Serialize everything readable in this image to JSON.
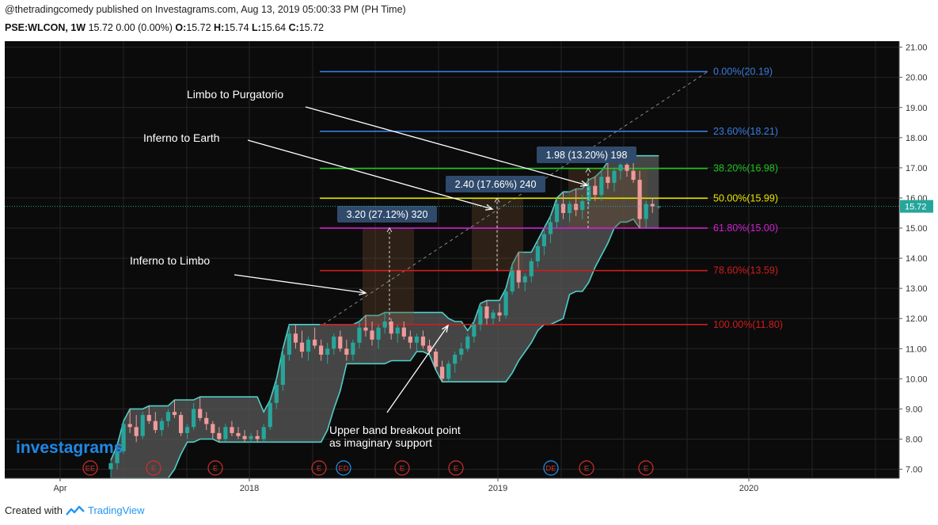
{
  "header": {
    "published_line": "@thetradingcomedy published on Investagrams.com, Aug 13, 2019 05:00:33 PM (PH Time)",
    "symbol": "PSE:WLCON, 1W",
    "quote": "15.72 0.00 (0.00%)",
    "o_label": "O:",
    "o": "15.72",
    "h_label": "H:",
    "h": "15.74",
    "l_label": "L:",
    "l": "15.64",
    "c_label": "C:",
    "c": "15.72"
  },
  "footer": {
    "created_with": "Created with",
    "brand": "TradingView"
  },
  "watermark": "investagrams",
  "colors": {
    "background": "#0b0b0b",
    "up": "#26a69a",
    "down": "#ef9a9a",
    "band": "#4dd0c8"
  },
  "chart_data": {
    "type": "candlestick",
    "symbol": "PSE:WLCON",
    "interval": "1W",
    "last_price": "15.72",
    "ylim": [
      6.7,
      21.2
    ],
    "y_ticks": [
      "7.00",
      "8.00",
      "9.00",
      "10.00",
      "11.00",
      "12.00",
      "13.00",
      "14.00",
      "15.00",
      "16.00",
      "17.00",
      "18.00",
      "19.00",
      "20.00",
      "21.00"
    ],
    "x_ticks": [
      "Apr",
      "2018",
      "2019",
      "2020"
    ],
    "fib_levels": [
      {
        "label": "0.00%(20.19)",
        "value": 20.19,
        "color": "#3b7de0"
      },
      {
        "label": "23.60%(18.21)",
        "value": 18.21,
        "color": "#3b7de0"
      },
      {
        "label": "38.20%(16.98)",
        "value": 16.98,
        "color": "#1ec41e"
      },
      {
        "label": "50.00%(15.99)",
        "value": 15.99,
        "color": "#e6e600"
      },
      {
        "label": "61.80%(15.00)",
        "value": 15.0,
        "color": "#d21fd2"
      },
      {
        "label": "78.60%(13.59)",
        "value": 13.59,
        "color": "#d01c1c"
      },
      {
        "label": "100.00%(11.80)",
        "value": 11.8,
        "color": "#d01c1c"
      }
    ],
    "measurements": [
      {
        "label": "3.20 (27.12%) 320",
        "from": 11.8,
        "to": 15.0
      },
      {
        "label": "2.40 (17.66%) 240",
        "from": 13.59,
        "to": 15.99
      },
      {
        "label": "1.98 (13.20%) 198",
        "from": 15.0,
        "to": 16.98
      }
    ],
    "annotations": [
      {
        "text": "Limbo to Purgatorio"
      },
      {
        "text": "Inferno to Earth"
      },
      {
        "text": "Inferno to Limbo"
      },
      {
        "text": "Upper band breakout point\nas imaginary support"
      }
    ],
    "event_markers": [
      "EE",
      "E",
      "E",
      "E",
      "ED",
      "E",
      "E",
      "DE",
      "E",
      "E"
    ],
    "candles": [
      {
        "o": 7.0,
        "h": 7.3,
        "l": 6.7,
        "c": 7.2
      },
      {
        "o": 7.2,
        "h": 7.8,
        "l": 7.0,
        "c": 7.6
      },
      {
        "o": 7.6,
        "h": 8.6,
        "l": 7.5,
        "c": 8.5
      },
      {
        "o": 8.5,
        "h": 9.0,
        "l": 8.2,
        "c": 8.4
      },
      {
        "o": 8.4,
        "h": 8.8,
        "l": 7.9,
        "c": 8.1
      },
      {
        "o": 8.1,
        "h": 8.9,
        "l": 8.0,
        "c": 8.8
      },
      {
        "o": 8.8,
        "h": 9.1,
        "l": 8.5,
        "c": 8.6
      },
      {
        "o": 8.6,
        "h": 8.9,
        "l": 8.2,
        "c": 8.3
      },
      {
        "o": 8.3,
        "h": 8.7,
        "l": 8.1,
        "c": 8.6
      },
      {
        "o": 8.6,
        "h": 9.0,
        "l": 8.4,
        "c": 8.9
      },
      {
        "o": 8.9,
        "h": 9.3,
        "l": 8.7,
        "c": 8.8
      },
      {
        "o": 8.8,
        "h": 8.9,
        "l": 8.1,
        "c": 8.2
      },
      {
        "o": 8.2,
        "h": 8.5,
        "l": 8.0,
        "c": 8.4
      },
      {
        "o": 8.4,
        "h": 9.2,
        "l": 8.3,
        "c": 9.0
      },
      {
        "o": 9.0,
        "h": 9.4,
        "l": 8.6,
        "c": 8.7
      },
      {
        "o": 8.7,
        "h": 8.9,
        "l": 8.3,
        "c": 8.5
      },
      {
        "o": 8.5,
        "h": 8.6,
        "l": 8.0,
        "c": 8.2
      },
      {
        "o": 8.2,
        "h": 8.4,
        "l": 7.9,
        "c": 8.0
      },
      {
        "o": 8.0,
        "h": 8.5,
        "l": 7.9,
        "c": 8.4
      },
      {
        "o": 8.4,
        "h": 8.6,
        "l": 8.1,
        "c": 8.2
      },
      {
        "o": 8.2,
        "h": 8.4,
        "l": 8.0,
        "c": 8.1
      },
      {
        "o": 8.1,
        "h": 8.3,
        "l": 7.9,
        "c": 8.0
      },
      {
        "o": 8.0,
        "h": 8.2,
        "l": 7.9,
        "c": 8.1
      },
      {
        "o": 8.1,
        "h": 8.3,
        "l": 7.9,
        "c": 8.0
      },
      {
        "o": 8.0,
        "h": 8.5,
        "l": 7.9,
        "c": 8.4
      },
      {
        "o": 8.4,
        "h": 9.3,
        "l": 8.3,
        "c": 9.2
      },
      {
        "o": 9.2,
        "h": 10.0,
        "l": 9.0,
        "c": 9.8
      },
      {
        "o": 9.8,
        "h": 11.0,
        "l": 9.6,
        "c": 10.8
      },
      {
        "o": 10.8,
        "h": 11.8,
        "l": 10.6,
        "c": 11.5
      },
      {
        "o": 11.5,
        "h": 11.8,
        "l": 11.0,
        "c": 11.2
      },
      {
        "o": 11.2,
        "h": 11.6,
        "l": 10.7,
        "c": 10.9
      },
      {
        "o": 10.9,
        "h": 11.4,
        "l": 10.6,
        "c": 11.3
      },
      {
        "o": 11.3,
        "h": 11.7,
        "l": 11.0,
        "c": 11.1
      },
      {
        "o": 11.1,
        "h": 11.3,
        "l": 10.6,
        "c": 10.8
      },
      {
        "o": 10.8,
        "h": 11.2,
        "l": 10.5,
        "c": 11.0
      },
      {
        "o": 11.0,
        "h": 11.5,
        "l": 10.8,
        "c": 11.4
      },
      {
        "o": 11.4,
        "h": 11.6,
        "l": 10.9,
        "c": 11.0
      },
      {
        "o": 11.0,
        "h": 11.3,
        "l": 10.6,
        "c": 10.8
      },
      {
        "o": 10.8,
        "h": 11.3,
        "l": 10.6,
        "c": 11.2
      },
      {
        "o": 11.2,
        "h": 11.9,
        "l": 11.0,
        "c": 11.7
      },
      {
        "o": 11.7,
        "h": 12.1,
        "l": 11.4,
        "c": 11.6
      },
      {
        "o": 11.6,
        "h": 11.9,
        "l": 11.1,
        "c": 11.3
      },
      {
        "o": 11.3,
        "h": 11.8,
        "l": 11.0,
        "c": 11.7
      },
      {
        "o": 11.7,
        "h": 12.2,
        "l": 11.5,
        "c": 11.9
      },
      {
        "o": 11.9,
        "h": 12.0,
        "l": 11.3,
        "c": 11.5
      },
      {
        "o": 11.5,
        "h": 11.8,
        "l": 11.2,
        "c": 11.7
      },
      {
        "o": 11.7,
        "h": 11.9,
        "l": 11.3,
        "c": 11.4
      },
      {
        "o": 11.4,
        "h": 11.6,
        "l": 11.0,
        "c": 11.2
      },
      {
        "o": 11.2,
        "h": 11.5,
        "l": 10.9,
        "c": 11.4
      },
      {
        "o": 11.4,
        "h": 11.6,
        "l": 11.0,
        "c": 11.1
      },
      {
        "o": 11.1,
        "h": 11.3,
        "l": 10.8,
        "c": 10.9
      },
      {
        "o": 10.9,
        "h": 11.0,
        "l": 10.3,
        "c": 10.4
      },
      {
        "o": 10.4,
        "h": 10.6,
        "l": 9.9,
        "c": 10.0
      },
      {
        "o": 10.0,
        "h": 10.6,
        "l": 9.9,
        "c": 10.5
      },
      {
        "o": 10.5,
        "h": 10.9,
        "l": 10.2,
        "c": 10.8
      },
      {
        "o": 10.8,
        "h": 11.2,
        "l": 10.6,
        "c": 11.0
      },
      {
        "o": 11.0,
        "h": 11.5,
        "l": 10.9,
        "c": 11.4
      },
      {
        "o": 11.4,
        "h": 11.9,
        "l": 11.2,
        "c": 11.8
      },
      {
        "o": 11.8,
        "h": 12.5,
        "l": 11.6,
        "c": 12.4
      },
      {
        "o": 12.4,
        "h": 12.6,
        "l": 11.8,
        "c": 12.0
      },
      {
        "o": 12.0,
        "h": 12.3,
        "l": 11.8,
        "c": 12.2
      },
      {
        "o": 12.2,
        "h": 12.5,
        "l": 11.9,
        "c": 12.1
      },
      {
        "o": 12.1,
        "h": 13.0,
        "l": 12.0,
        "c": 12.9
      },
      {
        "o": 12.9,
        "h": 13.8,
        "l": 12.8,
        "c": 13.6
      },
      {
        "o": 13.6,
        "h": 14.2,
        "l": 13.0,
        "c": 13.2
      },
      {
        "o": 13.2,
        "h": 13.5,
        "l": 12.9,
        "c": 13.4
      },
      {
        "o": 13.4,
        "h": 14.0,
        "l": 13.2,
        "c": 13.9
      },
      {
        "o": 13.9,
        "h": 14.6,
        "l": 13.7,
        "c": 14.4
      },
      {
        "o": 14.4,
        "h": 15.0,
        "l": 14.1,
        "c": 14.8
      },
      {
        "o": 14.8,
        "h": 15.4,
        "l": 14.5,
        "c": 15.2
      },
      {
        "o": 15.2,
        "h": 16.0,
        "l": 15.0,
        "c": 15.8
      },
      {
        "o": 15.8,
        "h": 16.2,
        "l": 15.3,
        "c": 15.5
      },
      {
        "o": 15.5,
        "h": 15.9,
        "l": 15.2,
        "c": 15.8
      },
      {
        "o": 15.8,
        "h": 16.3,
        "l": 15.4,
        "c": 15.6
      },
      {
        "o": 15.6,
        "h": 16.1,
        "l": 15.3,
        "c": 15.9
      },
      {
        "o": 15.9,
        "h": 16.6,
        "l": 15.7,
        "c": 16.4
      },
      {
        "o": 16.4,
        "h": 16.7,
        "l": 15.9,
        "c": 16.1
      },
      {
        "o": 16.1,
        "h": 16.9,
        "l": 15.9,
        "c": 16.7
      },
      {
        "o": 16.7,
        "h": 17.2,
        "l": 16.3,
        "c": 16.5
      },
      {
        "o": 16.5,
        "h": 17.0,
        "l": 16.2,
        "c": 16.9
      },
      {
        "o": 16.9,
        "h": 17.3,
        "l": 16.6,
        "c": 17.1
      },
      {
        "o": 17.1,
        "h": 17.4,
        "l": 16.7,
        "c": 16.9
      },
      {
        "o": 16.9,
        "h": 17.3,
        "l": 16.5,
        "c": 16.6
      },
      {
        "o": 16.6,
        "h": 16.9,
        "l": 15.0,
        "c": 15.3
      },
      {
        "o": 15.3,
        "h": 15.9,
        "l": 15.0,
        "c": 15.8
      },
      {
        "o": 15.8,
        "h": 16.0,
        "l": 15.5,
        "c": 15.72
      },
      {
        "o": 15.72,
        "h": 15.74,
        "l": 15.64,
        "c": 15.72
      }
    ]
  }
}
